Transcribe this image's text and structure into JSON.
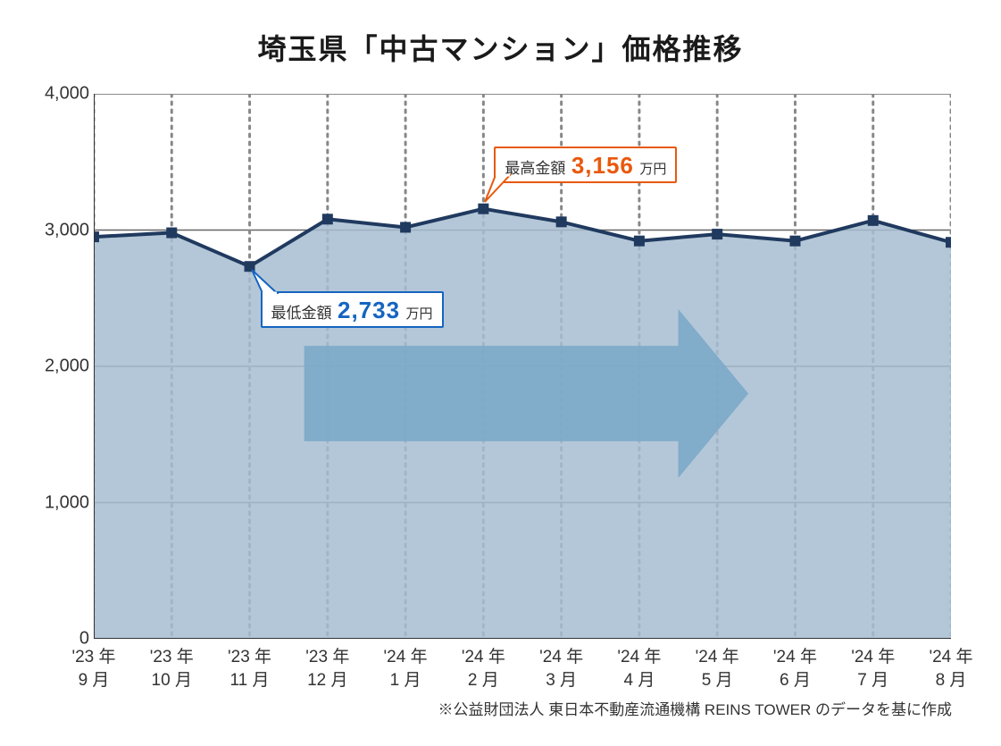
{
  "title": "埼玉県「中古マンション」価格推移",
  "title_fontsize": 32,
  "title_color": "#1a1a1a",
  "chart": {
    "type": "area",
    "background_color": "#ffffff",
    "plot_area_fill": "#a7bdd1",
    "plot_area_fill_opacity": 0.85,
    "line_color": "#203a5f",
    "line_width": 4,
    "marker_color": "#203a5f",
    "marker_size": 12,
    "marker_shape": "square",
    "axis_color": "#333333",
    "axis_width": 2,
    "grid_h_color": "#666666",
    "grid_h_width": 1.5,
    "grid_v_dash": "3 6",
    "grid_v_color": "#888888",
    "grid_v_width": 3,
    "ylim": [
      0,
      4000
    ],
    "ytick_step": 1000,
    "y_ticks": [
      0,
      1000,
      2000,
      3000,
      4000
    ],
    "y_tick_labels": [
      "0",
      "1,000",
      "2,000",
      "3,000",
      "4,000"
    ],
    "y_label_fontsize": 20,
    "x_label_fontsize": 19,
    "x_categories": [
      {
        "line1": "'23 年",
        "line2": "9 月"
      },
      {
        "line1": "'23 年",
        "line2": "10 月"
      },
      {
        "line1": "'23 年",
        "line2": "11 月"
      },
      {
        "line1": "'23 年",
        "line2": "12 月"
      },
      {
        "line1": "'24 年",
        "line2": "1 月"
      },
      {
        "line1": "'24 年",
        "line2": "2 月"
      },
      {
        "line1": "'24 年",
        "line2": "3 月"
      },
      {
        "line1": "'24 年",
        "line2": "4 月"
      },
      {
        "line1": "'24 年",
        "line2": "5 月"
      },
      {
        "line1": "'24 年",
        "line2": "6 月"
      },
      {
        "line1": "'24 年",
        "line2": "7 月"
      },
      {
        "line1": "'24 年",
        "line2": "8 月"
      }
    ],
    "values": [
      2950,
      2980,
      2733,
      3080,
      3020,
      3156,
      3060,
      2920,
      2970,
      2920,
      3070,
      2910
    ],
    "min_index": 2,
    "max_index": 5,
    "arrow": {
      "fill_color": "#7ba9c9",
      "opacity": 0.9,
      "y_center_value": 1800,
      "x_start_index": 2.7,
      "x_end_index": 8.4,
      "body_half_value": 350,
      "head_half_value": 620
    }
  },
  "callouts": {
    "max": {
      "label": "最高金額",
      "value": "3,156",
      "unit": " 万円",
      "border_color": "#e8590c",
      "value_color": "#e8590c",
      "label_fontsize": 17,
      "value_fontsize": 26,
      "unit_fontsize": 15
    },
    "min": {
      "label": "最低金額",
      "value": "2,733",
      "unit": " 万円",
      "border_color": "#1565c0",
      "value_color": "#1565c0",
      "label_fontsize": 17,
      "value_fontsize": 26,
      "unit_fontsize": 15
    }
  },
  "footnote": {
    "text": "※公益財団法人 東日本不動産流通機構 REINS TOWER のデータを基に作成",
    "fontsize": 17
  }
}
